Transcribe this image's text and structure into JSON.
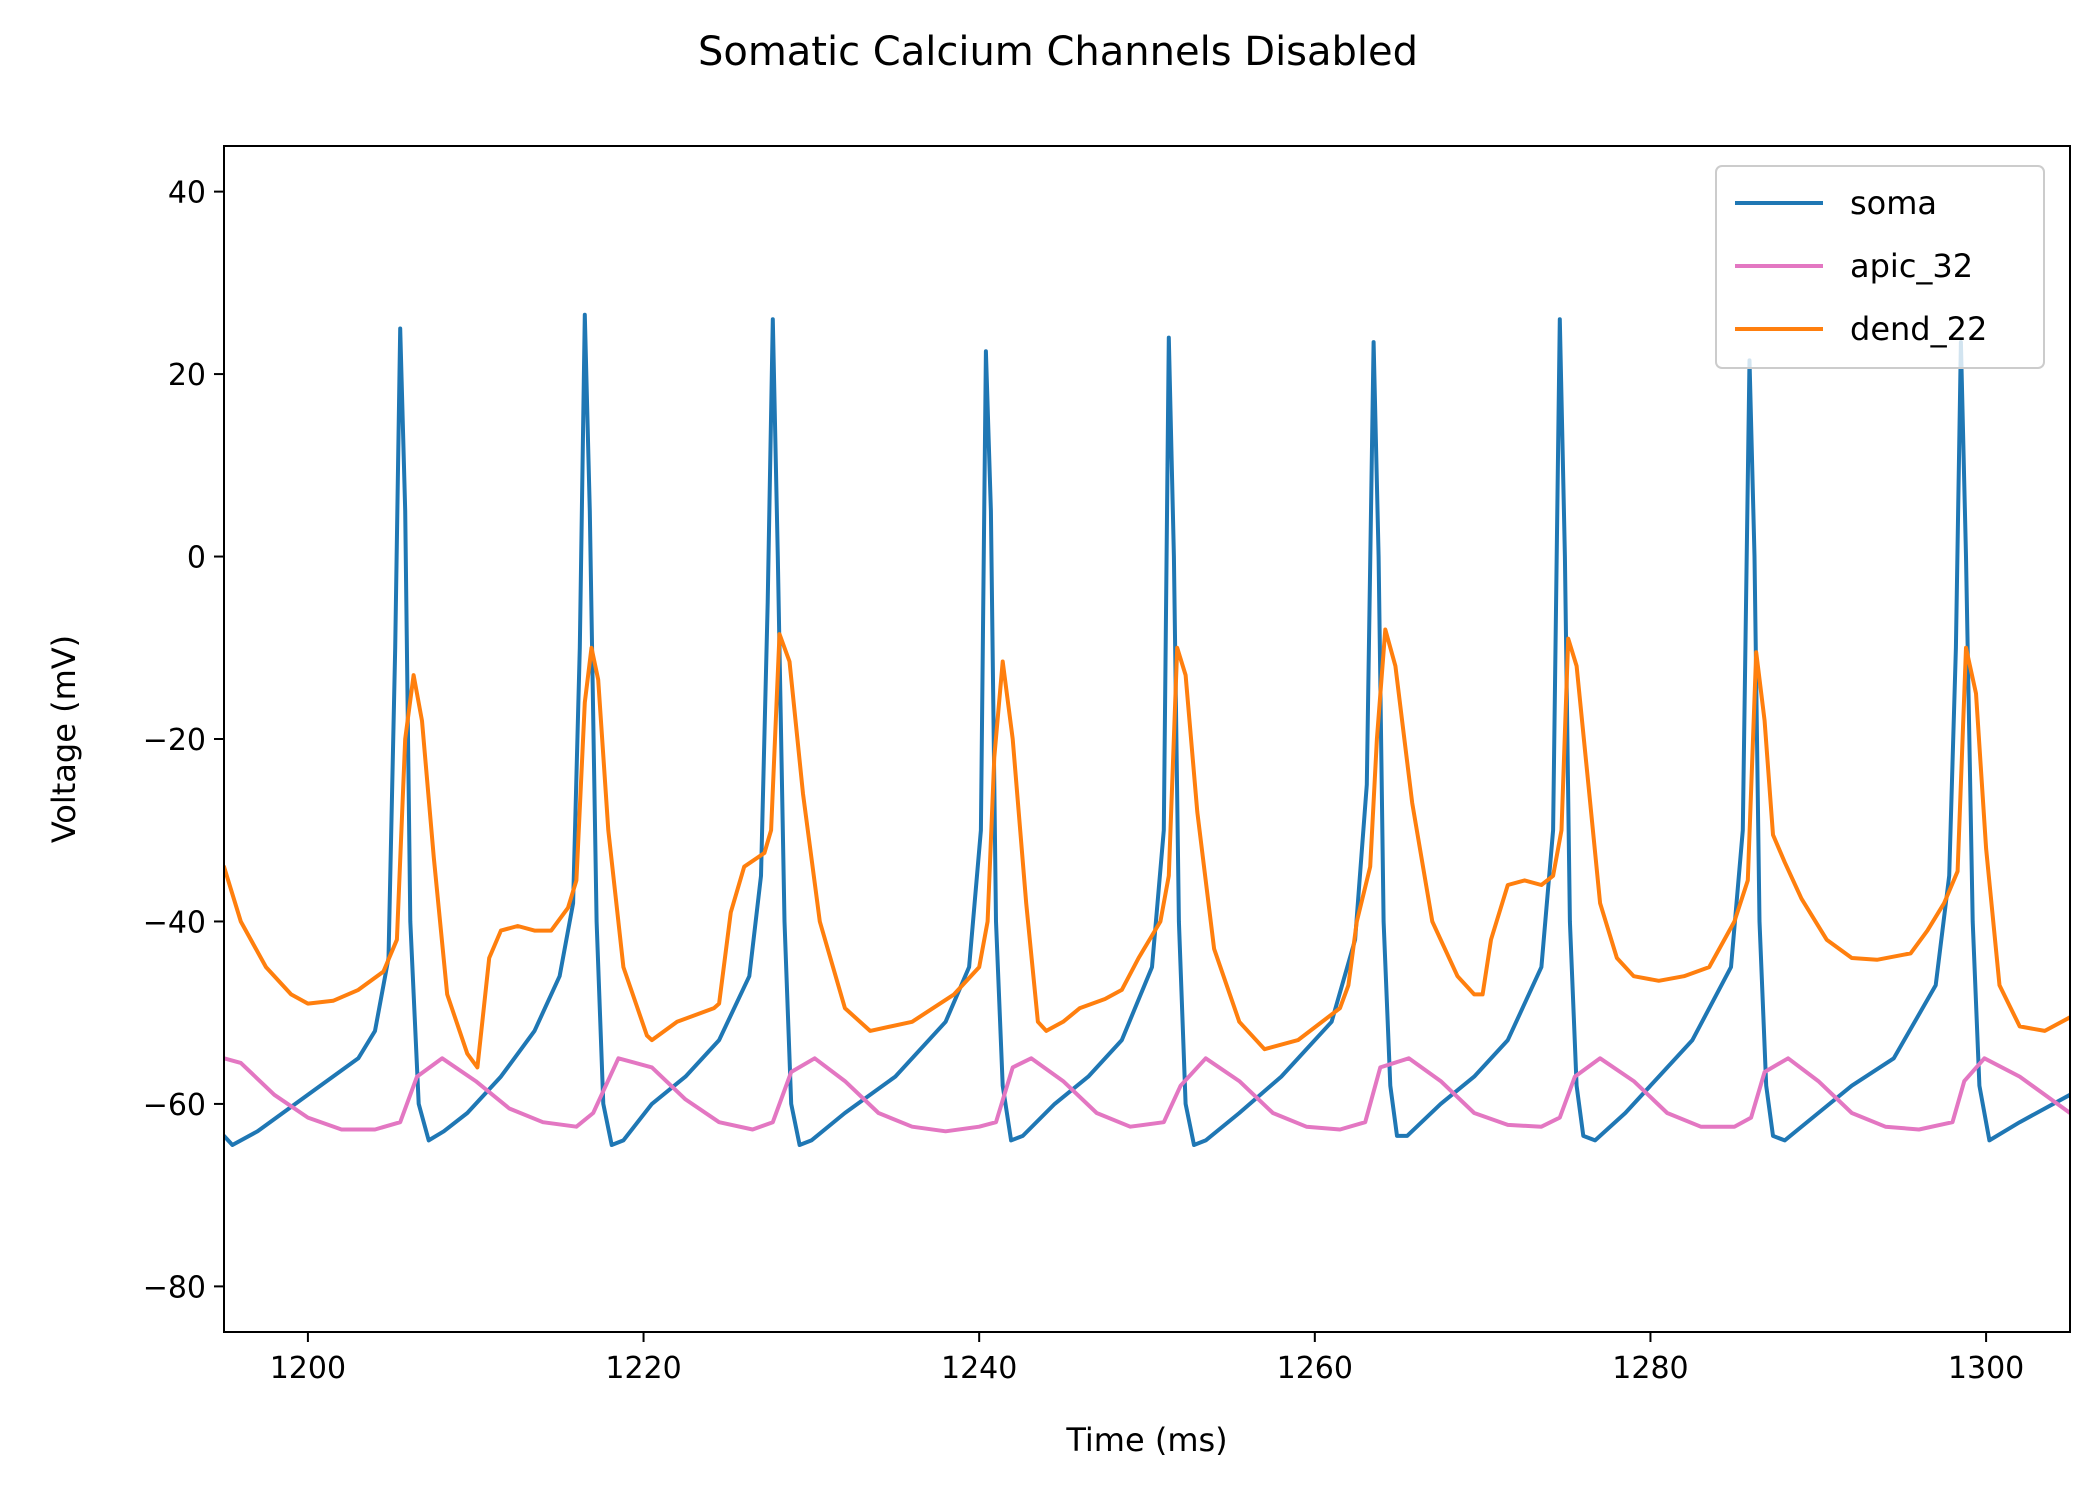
{
  "chart_data": {
    "type": "line",
    "title": "Somatic Calcium Channels Disabled",
    "xlabel": "Time (ms)",
    "ylabel": "Voltage (mV)",
    "xlim": [
      1195,
      1305
    ],
    "ylim": [
      -85,
      45
    ],
    "x_ticks": [
      1200,
      1220,
      1240,
      1260,
      1280,
      1300
    ],
    "y_ticks": [
      -80,
      -60,
      -40,
      -20,
      0,
      20,
      40
    ],
    "x_tick_labels": [
      "1200",
      "1220",
      "1240",
      "1260",
      "1280",
      "1300"
    ],
    "y_tick_labels": [
      "−80",
      "−60",
      "−40",
      "−20",
      "0",
      "20",
      "40"
    ],
    "grid": false,
    "legend": "top-right",
    "series": [
      {
        "name": "soma",
        "color": "#1f77b4",
        "x": [
          1195.0,
          1195.5,
          1197.0,
          1200.0,
          1203.0,
          1204.0,
          1204.8,
          1205.2,
          1205.5,
          1205.8,
          1206.1,
          1206.6,
          1207.2,
          1208.1,
          1209.5,
          1211.5,
          1213.5,
          1215.0,
          1215.8,
          1216.2,
          1216.5,
          1216.8,
          1217.2,
          1217.6,
          1218.1,
          1218.8,
          1220.5,
          1222.5,
          1224.5,
          1226.3,
          1227.0,
          1227.4,
          1227.7,
          1228.0,
          1228.4,
          1228.8,
          1229.3,
          1230.0,
          1232.0,
          1235.0,
          1238.0,
          1239.4,
          1240.1,
          1240.4,
          1240.7,
          1241.0,
          1241.4,
          1241.9,
          1242.6,
          1244.5,
          1246.5,
          1248.5,
          1250.3,
          1251.0,
          1251.3,
          1251.6,
          1251.9,
          1252.3,
          1252.8,
          1253.5,
          1255.5,
          1258.0,
          1261.0,
          1262.4,
          1263.1,
          1263.5,
          1263.8,
          1264.1,
          1264.5,
          1264.9,
          1265.5,
          1267.5,
          1269.5,
          1271.5,
          1273.5,
          1274.2,
          1274.6,
          1274.9,
          1275.2,
          1275.6,
          1276.0,
          1276.7,
          1278.5,
          1280.5,
          1282.5,
          1284.8,
          1285.5,
          1285.9,
          1286.2,
          1286.5,
          1286.9,
          1287.3,
          1288.0,
          1290.0,
          1292.0,
          1294.5,
          1297.0,
          1297.8,
          1298.2,
          1298.5,
          1298.8,
          1299.2,
          1299.6,
          1300.2,
          1302.0,
          1305.0
        ],
        "values": [
          -63.5,
          -64.5,
          -63.0,
          -59.0,
          -55.0,
          -52.0,
          -44.0,
          -10.0,
          25.0,
          5.0,
          -40.0,
          -60.0,
          -64.0,
          -63.0,
          -61.0,
          -57.0,
          -52.0,
          -46.0,
          -38.0,
          -10.0,
          26.5,
          5.0,
          -40.0,
          -60.0,
          -64.5,
          -64.0,
          -60.0,
          -57.0,
          -53.0,
          -46.0,
          -35.0,
          -5.0,
          26.0,
          0.0,
          -40.0,
          -60.0,
          -64.5,
          -64.0,
          -61.0,
          -57.0,
          -51.0,
          -45.0,
          -30.0,
          22.5,
          5.0,
          -40.0,
          -58.0,
          -64.0,
          -63.5,
          -60.0,
          -57.0,
          -53.0,
          -45.0,
          -30.0,
          24.0,
          0.0,
          -40.0,
          -60.0,
          -64.5,
          -64.0,
          -61.0,
          -57.0,
          -51.0,
          -42.0,
          -25.0,
          23.5,
          0.0,
          -40.0,
          -58.0,
          -63.5,
          -63.5,
          -60.0,
          -57.0,
          -53.0,
          -45.0,
          -30.0,
          26.0,
          0.0,
          -40.0,
          -58.0,
          -63.5,
          -64.0,
          -61.0,
          -57.0,
          -53.0,
          -45.0,
          -30.0,
          21.5,
          0.0,
          -40.0,
          -58.0,
          -63.5,
          -64.0,
          -61.0,
          -58.0,
          -55.0,
          -47.0,
          -35.0,
          -10.0,
          23.5,
          0.0,
          -40.0,
          -58.0,
          -64.0,
          -62.0,
          -59.0
        ]
      },
      {
        "name": "apic_32",
        "color": "#e377c2",
        "x": [
          1195.0,
          1196.0,
          1198.0,
          1200.0,
          1202.0,
          1204.0,
          1205.5,
          1206.5,
          1208.0,
          1210.0,
          1212.0,
          1214.0,
          1216.0,
          1217.0,
          1218.5,
          1220.5,
          1222.5,
          1224.5,
          1226.5,
          1227.7,
          1228.8,
          1230.2,
          1232.0,
          1234.0,
          1236.0,
          1238.0,
          1240.0,
          1241.0,
          1242.0,
          1243.1,
          1245.0,
          1247.0,
          1249.0,
          1251.0,
          1252.0,
          1253.5,
          1255.5,
          1257.5,
          1259.5,
          1261.5,
          1263.0,
          1263.9,
          1265.6,
          1267.5,
          1269.5,
          1271.5,
          1273.5,
          1274.6,
          1275.5,
          1277.0,
          1279.0,
          1281.0,
          1283.0,
          1285.0,
          1286.0,
          1286.8,
          1288.2,
          1290.0,
          1292.0,
          1294.0,
          1296.0,
          1298.0,
          1298.7,
          1299.9,
          1302.0,
          1305.0
        ],
        "values": [
          -55.0,
          -55.5,
          -59.0,
          -61.5,
          -62.8,
          -62.8,
          -62.0,
          -57.0,
          -55.0,
          -57.5,
          -60.5,
          -62.0,
          -62.5,
          -61.0,
          -55.0,
          -56.0,
          -59.5,
          -62.0,
          -62.8,
          -62.0,
          -56.5,
          -55.0,
          -57.5,
          -61.0,
          -62.5,
          -63.0,
          -62.5,
          -62.0,
          -56.0,
          -55.0,
          -57.5,
          -61.0,
          -62.5,
          -62.0,
          -58.0,
          -55.0,
          -57.5,
          -61.0,
          -62.5,
          -62.8,
          -62.0,
          -56.0,
          -55.0,
          -57.5,
          -61.0,
          -62.3,
          -62.5,
          -61.5,
          -57.0,
          -55.0,
          -57.5,
          -61.0,
          -62.5,
          -62.5,
          -61.5,
          -56.5,
          -55.0,
          -57.5,
          -61.0,
          -62.5,
          -62.8,
          -62.0,
          -57.5,
          -55.0,
          -57.0,
          -61.0
        ]
      },
      {
        "name": "dend_22",
        "color": "#ff7f0e",
        "x": [
          1195.0,
          1196.0,
          1197.5,
          1199.0,
          1200.0,
          1201.5,
          1203.0,
          1204.5,
          1205.3,
          1205.8,
          1206.3,
          1206.8,
          1207.5,
          1208.3,
          1209.5,
          1210.1,
          1210.8,
          1211.5,
          1212.5,
          1213.5,
          1214.5,
          1215.5,
          1216.0,
          1216.5,
          1216.9,
          1217.3,
          1217.9,
          1218.8,
          1220.2,
          1220.5,
          1222.0,
          1224.2,
          1224.5,
          1225.2,
          1226.0,
          1227.2,
          1227.6,
          1228.1,
          1228.7,
          1229.5,
          1230.5,
          1232.0,
          1233.5,
          1236.0,
          1238.5,
          1240.0,
          1240.5,
          1240.9,
          1241.4,
          1242.0,
          1242.8,
          1243.5,
          1244.0,
          1245.0,
          1246.0,
          1247.5,
          1248.5,
          1249.5,
          1250.8,
          1251.3,
          1251.8,
          1252.3,
          1253.0,
          1254.0,
          1255.5,
          1257.0,
          1259.0,
          1261.5,
          1262.0,
          1262.5,
          1263.3,
          1263.7,
          1264.2,
          1264.8,
          1265.8,
          1267.0,
          1268.5,
          1269.5,
          1270.0,
          1270.5,
          1271.5,
          1272.5,
          1273.5,
          1274.2,
          1274.7,
          1275.1,
          1275.6,
          1276.3,
          1277.0,
          1278.0,
          1279.0,
          1280.5,
          1282.0,
          1283.5,
          1285.0,
          1285.8,
          1286.3,
          1286.8,
          1287.3,
          1288.0,
          1289.0,
          1290.5,
          1292.0,
          1293.5,
          1295.5,
          1296.5,
          1297.5,
          1298.3,
          1298.8,
          1299.4,
          1300.0,
          1300.8,
          1302.0,
          1303.5,
          1305.0
        ],
        "values": [
          -34.0,
          -40.0,
          -45.0,
          -48.0,
          -49.0,
          -48.7,
          -47.5,
          -45.5,
          -42.0,
          -20.0,
          -13.0,
          -18.0,
          -33.0,
          -48.0,
          -54.5,
          -56.0,
          -44.0,
          -41.0,
          -40.5,
          -41.0,
          -41.0,
          -38.5,
          -35.5,
          -16.0,
          -10.0,
          -13.5,
          -30.0,
          -45.0,
          -52.5,
          -53.0,
          -51.0,
          -49.5,
          -49.0,
          -39.0,
          -34.0,
          -32.5,
          -30.0,
          -8.5,
          -11.5,
          -26.0,
          -40.0,
          -49.5,
          -52.0,
          -51.0,
          -48.0,
          -45.0,
          -40.0,
          -22.0,
          -11.5,
          -20.0,
          -38.0,
          -51.0,
          -52.0,
          -51.0,
          -49.5,
          -48.5,
          -47.5,
          -44.0,
          -40.0,
          -35.0,
          -10.0,
          -13.0,
          -28.0,
          -43.0,
          -51.0,
          -54.0,
          -53.0,
          -49.5,
          -47.0,
          -40.0,
          -34.0,
          -20.0,
          -8.0,
          -12.0,
          -27.0,
          -40.0,
          -46.0,
          -48.0,
          -48.0,
          -42.0,
          -36.0,
          -35.5,
          -36.0,
          -35.0,
          -30.0,
          -9.0,
          -12.0,
          -25.0,
          -38.0,
          -44.0,
          -46.0,
          -46.5,
          -46.0,
          -45.0,
          -40.0,
          -35.5,
          -10.5,
          -18.0,
          -30.5,
          -33.5,
          -37.5,
          -42.0,
          -44.0,
          -44.2,
          -43.5,
          -41.0,
          -38.0,
          -34.5,
          -10.0,
          -15.0,
          -32.0,
          -47.0,
          -51.5,
          -52.0,
          -50.5
        ]
      }
    ]
  }
}
